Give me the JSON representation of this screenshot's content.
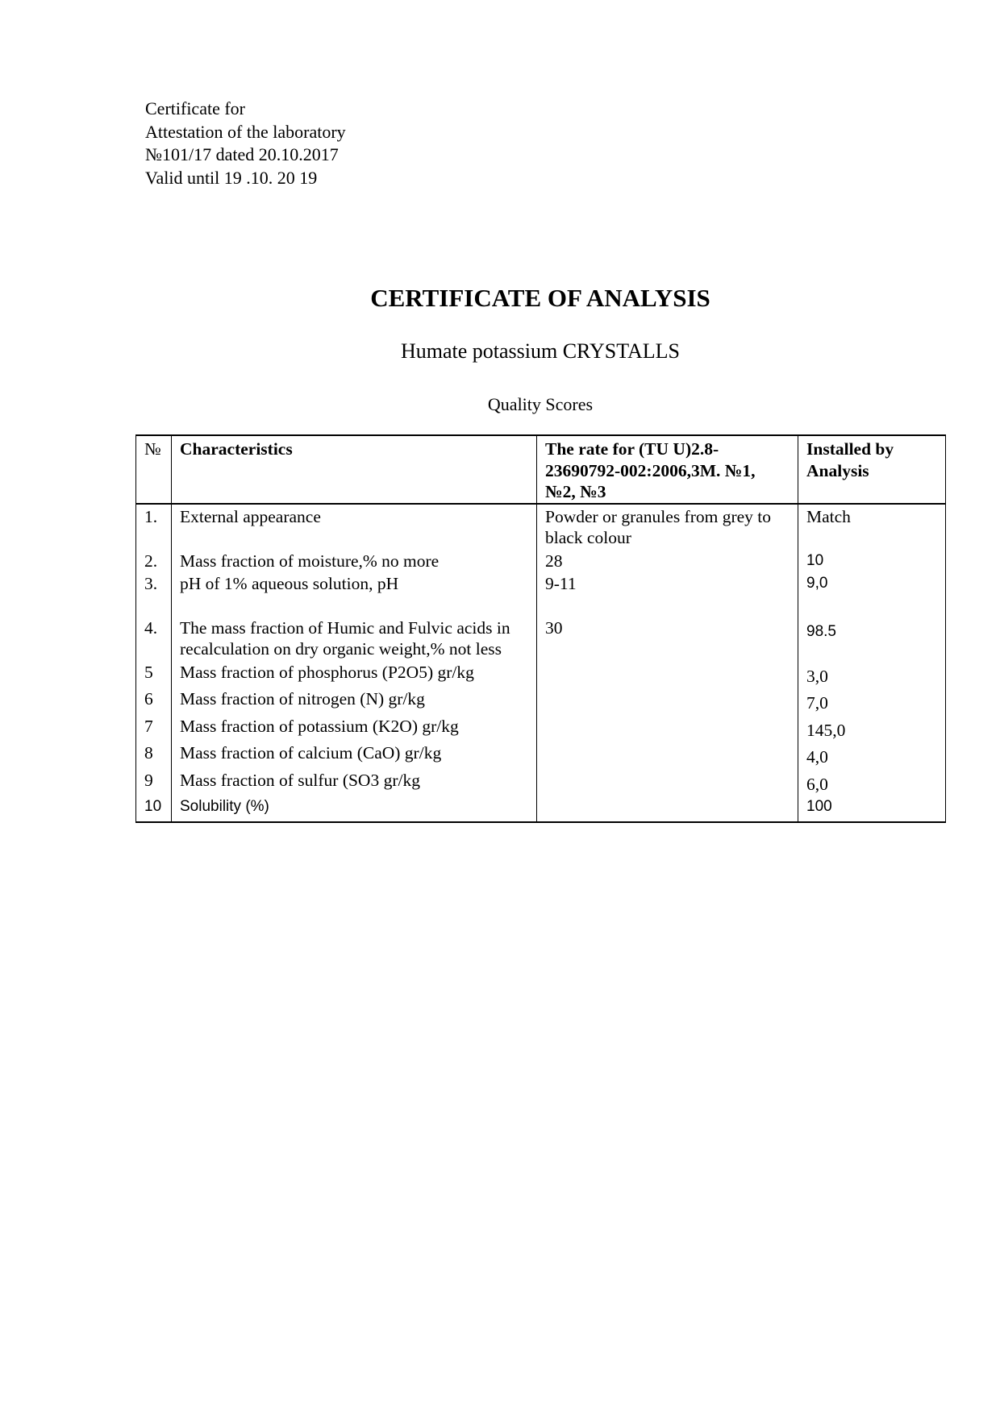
{
  "header_lines": [
    "Certificate for",
    "Attestation of the laboratory",
    "№101/17 dated 20.10.2017",
    "Valid until 19 .10. 20 19"
  ],
  "title": "CERTIFICATE OF ANALYSIS",
  "subtitle": "Humate potassium CRYSTALLS",
  "table_caption": "Quality Scores",
  "table": {
    "headers": [
      "№",
      "Characteristics",
      "The rate for (TU U)2.8-23690792-002:2006,3M. №1, №2, №3",
      "Installed by Analysis"
    ],
    "rows": [
      {
        "no": "1.",
        "characteristic": "External appearance",
        "rate": "Powder or granules from grey to black colour",
        "result": "Match"
      },
      {
        "no": "2.",
        "characteristic": "Mass fraction of moisture,% no more",
        "rate": "28",
        "result": "10"
      },
      {
        "no": "3.",
        "characteristic": "pH of 1% aqueous solution, pH",
        "rate": "9-11",
        "result": "9,0"
      },
      {
        "no": "4.",
        "characteristic": "The mass fraction of Humic and Fulvic acids in recalculation on dry organic  weight,% not less",
        "rate": "30",
        "result": "98.5"
      },
      {
        "no": "5",
        "characteristic": "Mass fraction of phosphorus (P2O5) gr/kg",
        "rate": "",
        "result": "3,0"
      },
      {
        "no": "6",
        "characteristic": "Mass fraction of nitrogen (N) gr/kg",
        "rate": "",
        "result": "7,0"
      },
      {
        "no": "7",
        "characteristic": "Mass fraction of potassium (K2O) gr/kg",
        "rate": "",
        "result": "145,0"
      },
      {
        "no": "8",
        "characteristic": "Mass fraction of calcium (CaO) gr/kg",
        "rate": "",
        "result": "4,0"
      },
      {
        "no": "9",
        "characteristic": "Mass fraction of sulfur (SO3 gr/kg",
        "rate": "",
        "result": "6,0"
      },
      {
        "no": "10",
        "characteristic": "Solubility (%)",
        "rate": "",
        "result": "100"
      }
    ]
  }
}
